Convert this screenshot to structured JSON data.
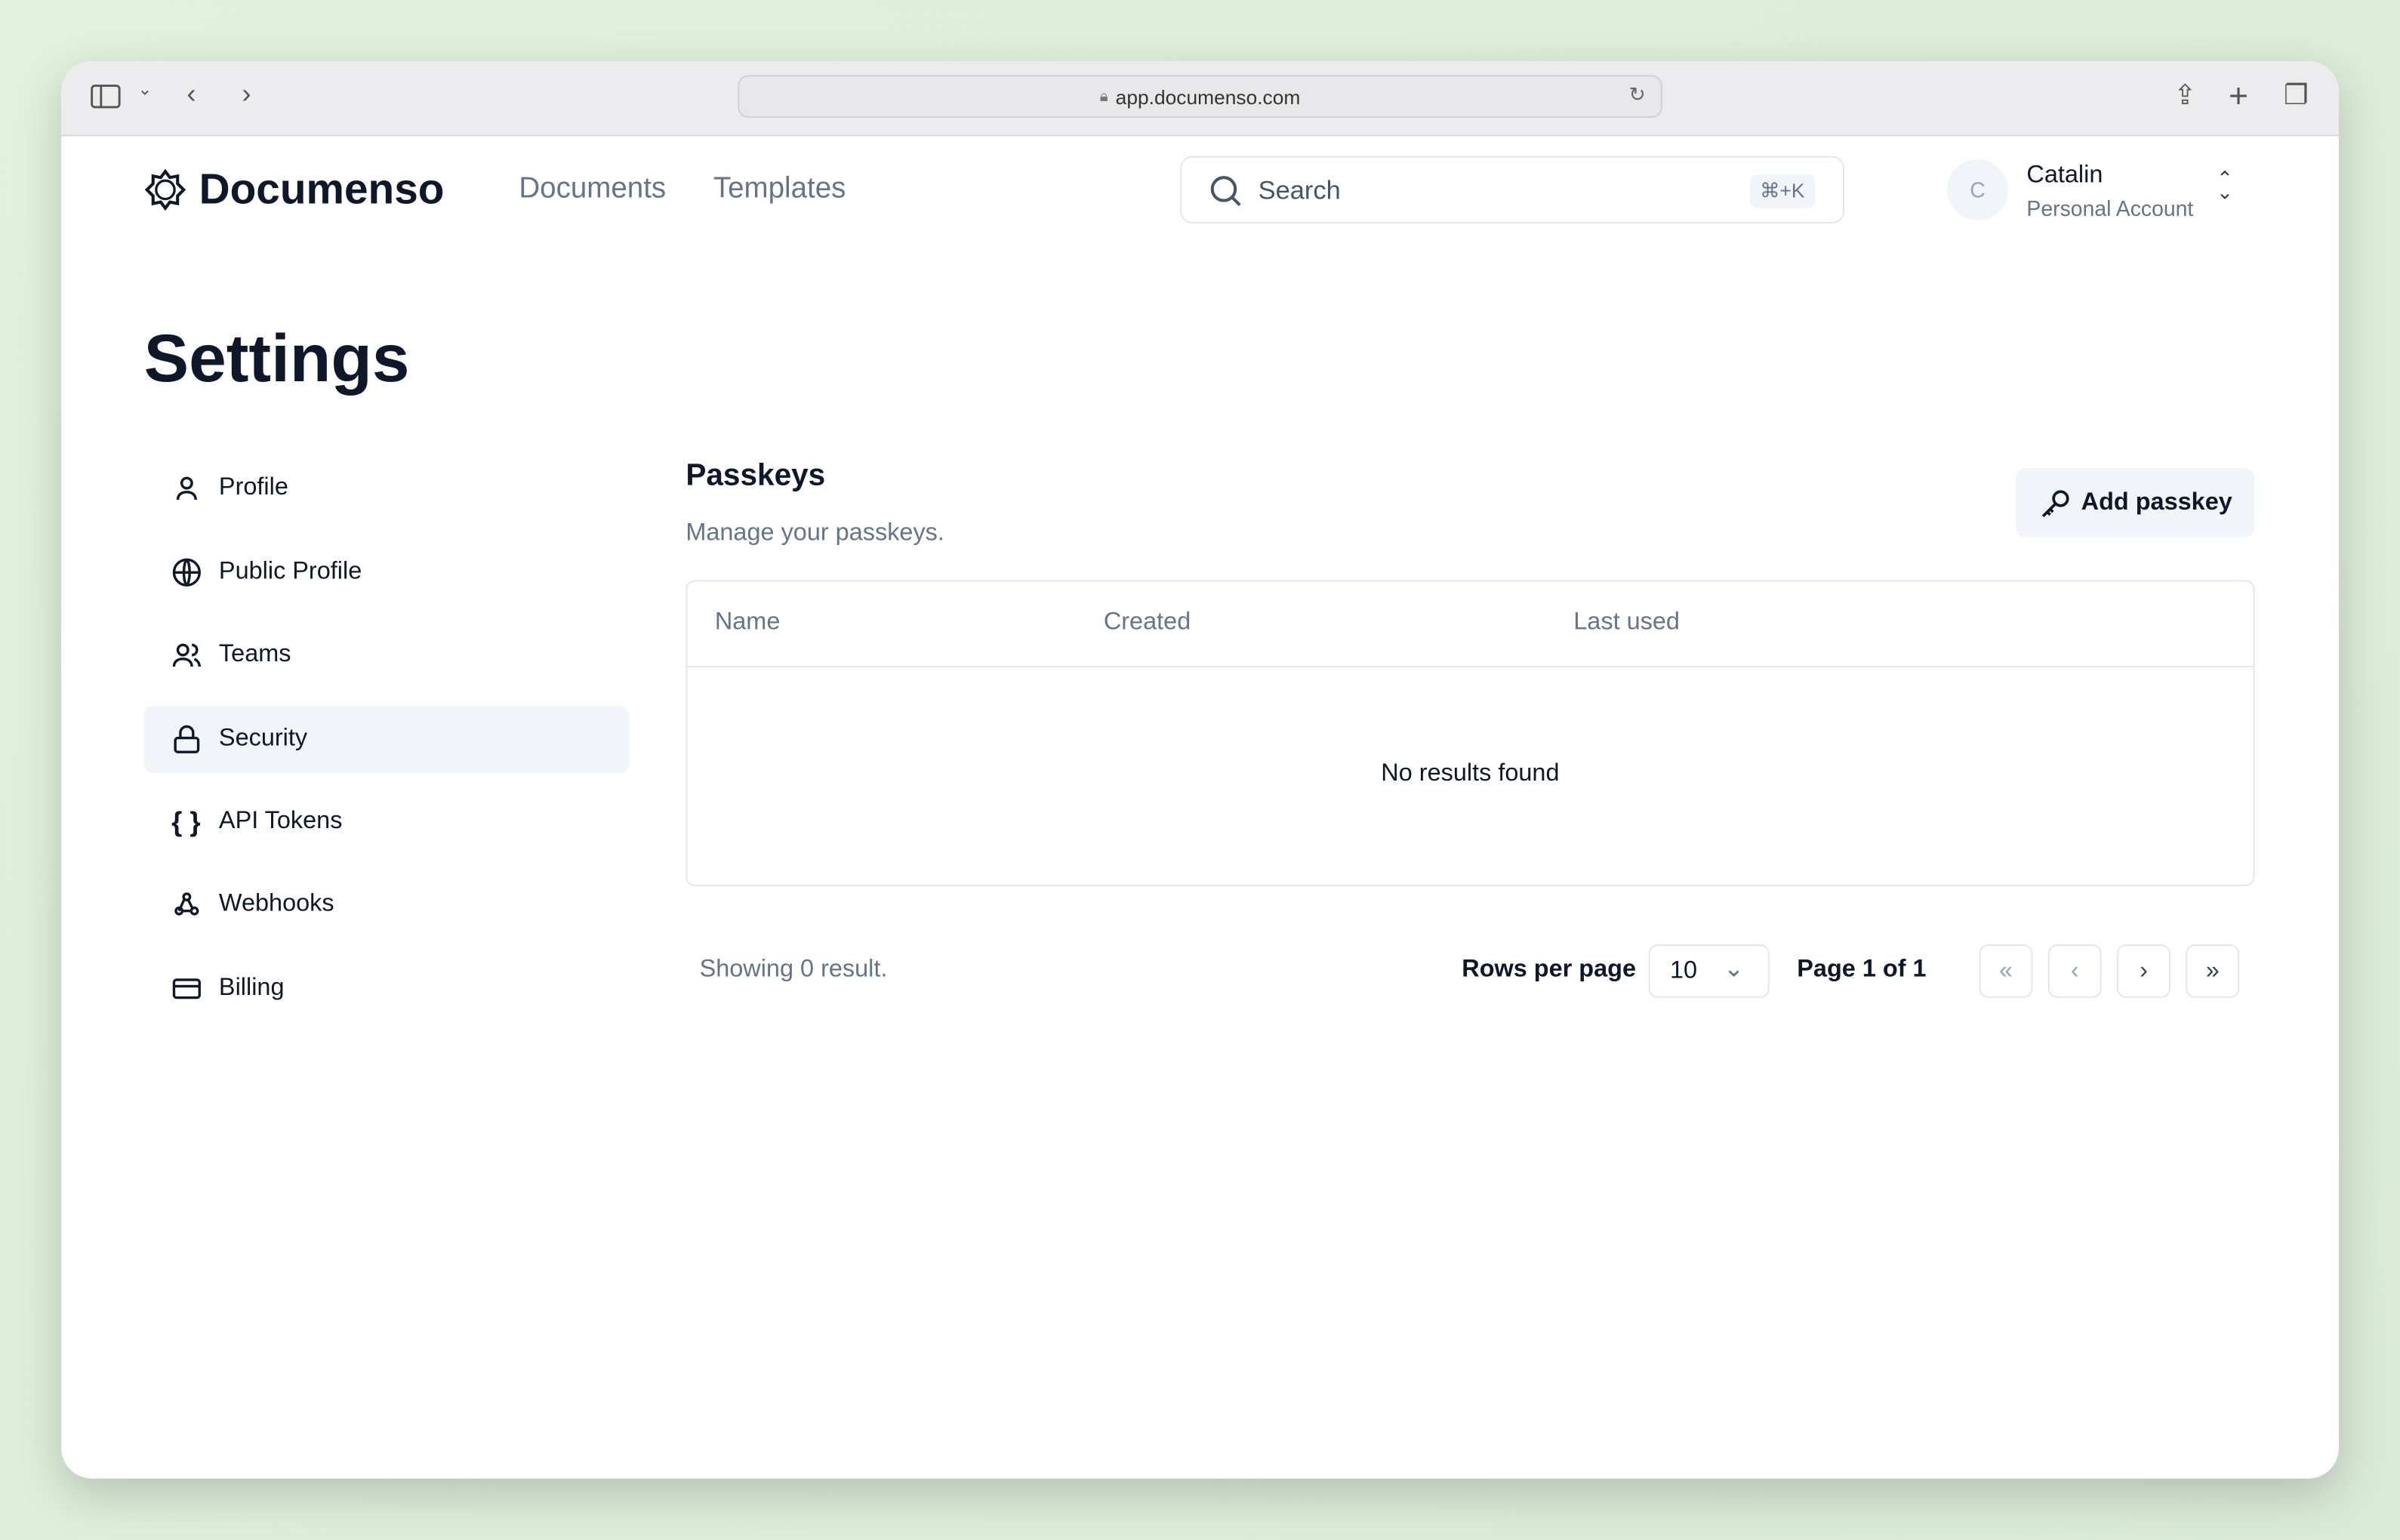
{
  "browser": {
    "url": "app.documenso.com"
  },
  "header": {
    "brand": "Documenso",
    "nav": [
      "Documents",
      "Templates"
    ],
    "search_placeholder": "Search",
    "search_shortcut": "⌘+K",
    "user": {
      "initial": "C",
      "name": "Catalin",
      "account": "Personal Account"
    }
  },
  "page": {
    "title": "Settings"
  },
  "sidebar": {
    "items": [
      {
        "label": "Profile",
        "icon": "user-icon"
      },
      {
        "label": "Public Profile",
        "icon": "globe-icon"
      },
      {
        "label": "Teams",
        "icon": "users-icon"
      },
      {
        "label": "Security",
        "icon": "lock-icon",
        "active": true
      },
      {
        "label": "API Tokens",
        "icon": "braces-icon"
      },
      {
        "label": "Webhooks",
        "icon": "webhook-icon"
      },
      {
        "label": "Billing",
        "icon": "credit-card-icon"
      }
    ]
  },
  "passkeys": {
    "title": "Passkeys",
    "subtitle": "Manage your passkeys.",
    "add_label": "Add passkey",
    "columns": [
      "Name",
      "Created",
      "Last used"
    ],
    "empty": "No results found"
  },
  "pagination": {
    "showing": "Showing 0 result.",
    "rows_label": "Rows per page",
    "rows_value": "10",
    "page_label": "Page 1 of 1"
  }
}
